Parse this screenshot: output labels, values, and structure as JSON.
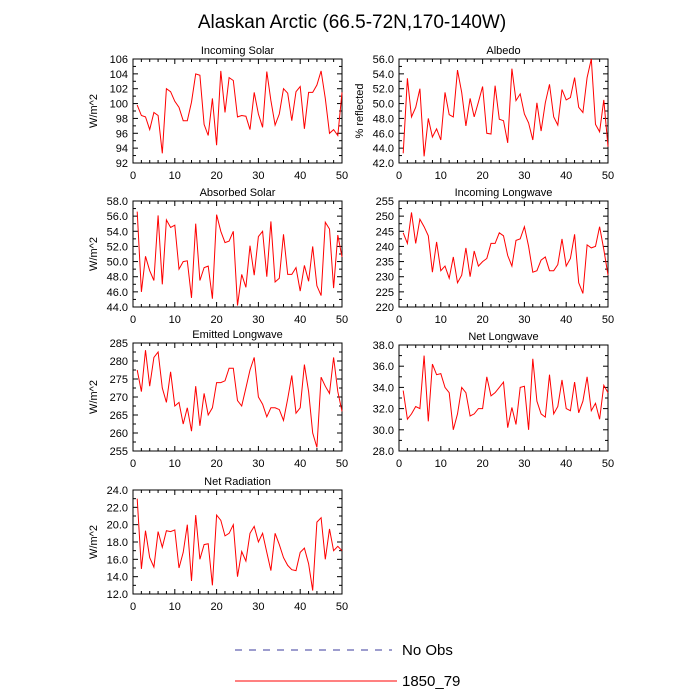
{
  "figure": {
    "title": "Alaskan Arctic (66.5-72N,170-140W)"
  },
  "legend": [
    {
      "label": "No Obs",
      "color": "#3b3b9c",
      "style": "dashed"
    },
    {
      "label": "1850_79",
      "color": "#ff0000",
      "style": "solid"
    }
  ],
  "chart_data": [
    {
      "type": "line",
      "title": "Incoming Solar",
      "ylabel": "W/m^2",
      "xlabel": "",
      "xlim": [
        0,
        50
      ],
      "xticks": [
        0,
        10,
        20,
        30,
        40,
        50
      ],
      "ylim": [
        92,
        106
      ],
      "yticks": [
        92,
        94,
        96,
        98,
        100,
        102,
        104,
        106
      ],
      "ytick_labels": [
        "92",
        "94",
        "96",
        "98",
        "100",
        "102",
        "104",
        "106"
      ],
      "series": [
        {
          "name": "1850_79",
          "color": "#ff0000",
          "x": [
            1,
            2,
            3,
            4,
            5,
            6,
            7,
            8,
            9,
            10,
            11,
            12,
            13,
            14,
            15,
            16,
            17,
            18,
            19,
            20,
            21,
            22,
            23,
            24,
            25,
            26,
            27,
            28,
            29,
            30,
            31,
            32,
            33,
            34,
            35,
            36,
            37,
            38,
            39,
            40,
            41,
            42,
            43,
            44,
            45,
            46,
            47,
            48,
            49,
            50
          ],
          "values": [
            99.8,
            98.4,
            98.2,
            96.5,
            98.8,
            98.4,
            93.3,
            102,
            101.6,
            100.3,
            99.5,
            97.7,
            97.7,
            100.2,
            104,
            103.8,
            97.2,
            95.7,
            100.7,
            94.4,
            104.4,
            98.8,
            103.5,
            103.1,
            98.2,
            98.4,
            98.3,
            96.5,
            101.5,
            98.6,
            96.8,
            104.3,
            100.4,
            97.1,
            98.6,
            102,
            101.4,
            97.7,
            101.6,
            102.3,
            96.6,
            101.5,
            101.5,
            102.5,
            104.4,
            100.7,
            96,
            96.5,
            95.7,
            101.5
          ]
        }
      ]
    },
    {
      "type": "line",
      "title": "Albedo",
      "ylabel": "% reflected",
      "xlabel": "",
      "xlim": [
        0,
        50
      ],
      "xticks": [
        0,
        10,
        20,
        30,
        40,
        50
      ],
      "ylim": [
        42,
        56
      ],
      "yticks": [
        42,
        44,
        46,
        48,
        50,
        52,
        54,
        56
      ],
      "ytick_labels": [
        "42.0",
        "44.0",
        "46.0",
        "48.0",
        "50.0",
        "52.0",
        "54.0",
        "56.0"
      ],
      "series": [
        {
          "name": "1850_79",
          "color": "#ff0000",
          "x": [
            1,
            2,
            3,
            4,
            5,
            6,
            7,
            8,
            9,
            10,
            11,
            12,
            13,
            14,
            15,
            16,
            17,
            18,
            19,
            20,
            21,
            22,
            23,
            24,
            25,
            26,
            27,
            28,
            29,
            30,
            31,
            32,
            33,
            34,
            35,
            36,
            37,
            38,
            39,
            40,
            41,
            42,
            43,
            44,
            45,
            46,
            47,
            48,
            49,
            50
          ],
          "values": [
            43.3,
            53.4,
            48.2,
            49.5,
            52,
            42.9,
            48,
            45.5,
            46.6,
            45.1,
            51.5,
            48.5,
            48.2,
            54.5,
            51.5,
            47,
            50.7,
            48.2,
            50.2,
            52.3,
            46,
            45.9,
            52.4,
            47.9,
            47.7,
            44.7,
            54.7,
            50.4,
            51.3,
            48.6,
            47.4,
            45.1,
            50.1,
            46.3,
            50.1,
            52.6,
            48.2,
            47.1,
            51.9,
            50.5,
            50.8,
            53.5,
            49.5,
            48.8,
            53.5,
            56,
            47.2,
            46.2,
            50.5,
            44.2
          ]
        }
      ]
    },
    {
      "type": "line",
      "title": "Absorbed Solar",
      "ylabel": "W/m^2",
      "xlabel": "",
      "xlim": [
        0,
        50
      ],
      "xticks": [
        0,
        10,
        20,
        30,
        40,
        50
      ],
      "ylim": [
        44,
        58
      ],
      "yticks": [
        44,
        46,
        48,
        50,
        52,
        54,
        56,
        58
      ],
      "ytick_labels": [
        "44.0",
        "46.0",
        "48.0",
        "50.0",
        "52.0",
        "54.0",
        "56.0",
        "58.0"
      ],
      "series": [
        {
          "name": "1850_79",
          "color": "#ff0000",
          "x": [
            1,
            2,
            3,
            4,
            5,
            6,
            7,
            8,
            9,
            10,
            11,
            12,
            13,
            14,
            15,
            16,
            17,
            18,
            19,
            20,
            21,
            22,
            23,
            24,
            25,
            26,
            27,
            28,
            29,
            30,
            31,
            32,
            33,
            34,
            35,
            36,
            37,
            38,
            39,
            40,
            41,
            42,
            43,
            44,
            45,
            46,
            47,
            48,
            49,
            50
          ],
          "values": [
            56.6,
            46,
            50.7,
            48.8,
            47.5,
            56.1,
            47,
            55.5,
            54.5,
            54.8,
            49,
            50,
            50.1,
            45.2,
            55,
            47.5,
            49.2,
            49.4,
            45.1,
            56.2,
            54,
            52.5,
            52.7,
            54,
            44.2,
            48.3,
            46.6,
            52.1,
            48.2,
            53.3,
            54,
            48,
            55.3,
            47.3,
            47.8,
            53.6,
            48.3,
            48.3,
            49.2,
            46.1,
            49.5,
            47.4,
            52,
            46.8,
            45.5,
            55.2,
            54.3,
            46.5,
            53.5,
            50.6
          ]
        }
      ]
    },
    {
      "type": "line",
      "title": "Incoming Longwave",
      "ylabel": "",
      "xlabel": "",
      "xlim": [
        0,
        50
      ],
      "xticks": [
        0,
        10,
        20,
        30,
        40,
        50
      ],
      "ylim": [
        220,
        255
      ],
      "yticks": [
        220,
        225,
        230,
        235,
        240,
        245,
        250,
        255
      ],
      "ytick_labels": [
        "220",
        "225",
        "230",
        "235",
        "240",
        "245",
        "250",
        "255"
      ],
      "series": [
        {
          "name": "1850_79",
          "color": "#ff0000",
          "x": [
            1,
            2,
            3,
            4,
            5,
            6,
            7,
            8,
            9,
            10,
            11,
            12,
            13,
            14,
            15,
            16,
            17,
            18,
            19,
            20,
            21,
            22,
            23,
            24,
            25,
            26,
            27,
            28,
            29,
            30,
            31,
            32,
            33,
            34,
            35,
            36,
            37,
            38,
            39,
            40,
            41,
            42,
            43,
            44,
            45,
            46,
            47,
            48,
            49,
            50
          ],
          "values": [
            244.5,
            241,
            251.2,
            241,
            249,
            246.5,
            243.5,
            231.5,
            241.5,
            232,
            233.5,
            229.5,
            236.5,
            228,
            230.5,
            239.5,
            230,
            238.5,
            233.5,
            235,
            236,
            241,
            241,
            244.5,
            243.5,
            237,
            233.5,
            242,
            242.5,
            246.5,
            240,
            231.5,
            232,
            235.5,
            236.5,
            232,
            232,
            234,
            242.5,
            233.5,
            236,
            244,
            228,
            224.5,
            240.5,
            239.5,
            240,
            246.5,
            239,
            230.5
          ]
        }
      ]
    },
    {
      "type": "line",
      "title": "Emitted Longwave",
      "ylabel": "W/m^2",
      "xlabel": "",
      "xlim": [
        0,
        50
      ],
      "xticks": [
        0,
        10,
        20,
        30,
        40,
        50
      ],
      "ylim": [
        255,
        285
      ],
      "yticks": [
        255,
        260,
        265,
        270,
        275,
        280,
        285
      ],
      "ytick_labels": [
        "255",
        "260",
        "265",
        "270",
        "275",
        "280",
        "285"
      ],
      "series": [
        {
          "name": "1850_79",
          "color": "#ff0000",
          "x": [
            1,
            2,
            3,
            4,
            5,
            6,
            7,
            8,
            9,
            10,
            11,
            12,
            13,
            14,
            15,
            16,
            17,
            18,
            19,
            20,
            21,
            22,
            23,
            24,
            25,
            26,
            27,
            28,
            29,
            30,
            31,
            32,
            33,
            34,
            35,
            36,
            37,
            38,
            39,
            40,
            41,
            42,
            43,
            44,
            45,
            46,
            47,
            48,
            49,
            50
          ],
          "values": [
            277.5,
            271.5,
            283,
            273,
            281,
            282.5,
            272.5,
            268.5,
            277,
            267.5,
            268.5,
            262.5,
            267,
            260.5,
            273,
            262,
            271,
            265,
            267,
            274,
            274,
            274.5,
            278,
            278,
            269,
            267.5,
            272.5,
            277.5,
            281,
            270,
            268,
            264.5,
            267,
            267,
            266.5,
            263.5,
            269.5,
            276,
            265.5,
            267,
            279,
            271.5,
            260,
            256,
            275.5,
            273,
            271,
            281,
            271.5,
            266
          ]
        }
      ]
    },
    {
      "type": "line",
      "title": "Net Longwave",
      "ylabel": "",
      "xlabel": "",
      "xlim": [
        0,
        50
      ],
      "xticks": [
        0,
        10,
        20,
        30,
        40,
        50
      ],
      "ylim": [
        28,
        38
      ],
      "yticks": [
        28,
        30,
        32,
        34,
        36,
        38
      ],
      "ytick_labels": [
        "28.0",
        "30.0",
        "32.0",
        "34.0",
        "36.0",
        "38.0"
      ],
      "series": [
        {
          "name": "1850_79",
          "color": "#ff0000",
          "x": [
            1,
            2,
            3,
            4,
            5,
            6,
            7,
            8,
            9,
            10,
            11,
            12,
            13,
            14,
            15,
            16,
            17,
            18,
            19,
            20,
            21,
            22,
            23,
            24,
            25,
            26,
            27,
            28,
            29,
            30,
            31,
            32,
            33,
            34,
            35,
            36,
            37,
            38,
            39,
            40,
            41,
            42,
            43,
            44,
            45,
            46,
            47,
            48,
            49,
            50
          ],
          "values": [
            33.7,
            31,
            31.5,
            32.2,
            32,
            37,
            30.8,
            36.2,
            35.2,
            35.3,
            34,
            33.5,
            30,
            31.5,
            34,
            33.5,
            31.3,
            31.5,
            32,
            32,
            35,
            33.2,
            33.5,
            34,
            34.5,
            30.2,
            32.1,
            30.5,
            34,
            34.1,
            30,
            36.7,
            32.7,
            31.5,
            31.2,
            35.2,
            31.5,
            32.2,
            34.7,
            32,
            31.8,
            34.5,
            31.6,
            32.7,
            35,
            31.8,
            32.5,
            31,
            34.2,
            33.5
          ]
        }
      ]
    },
    {
      "type": "line",
      "title": "Net Radiation",
      "ylabel": "W/m^2",
      "xlabel": "",
      "xlim": [
        0,
        50
      ],
      "xticks": [
        0,
        10,
        20,
        30,
        40,
        50
      ],
      "ylim": [
        12,
        24
      ],
      "yticks": [
        12,
        14,
        16,
        18,
        20,
        22,
        24
      ],
      "ytick_labels": [
        "12.0",
        "14.0",
        "16.0",
        "18.0",
        "20.0",
        "22.0",
        "24.0"
      ],
      "series": [
        {
          "name": "1850_79",
          "color": "#ff0000",
          "x": [
            1,
            2,
            3,
            4,
            5,
            6,
            7,
            8,
            9,
            10,
            11,
            12,
            13,
            14,
            15,
            16,
            17,
            18,
            19,
            20,
            21,
            22,
            23,
            24,
            25,
            26,
            27,
            28,
            29,
            30,
            31,
            32,
            33,
            34,
            35,
            36,
            37,
            38,
            39,
            40,
            41,
            42,
            43,
            44,
            45,
            46,
            47,
            48,
            49,
            50
          ],
          "values": [
            23,
            14.9,
            19.3,
            16.2,
            15.1,
            19.2,
            17.4,
            19.3,
            19.2,
            19.4,
            15,
            16.8,
            20,
            13.5,
            21.1,
            16,
            17.7,
            17.8,
            13,
            21.1,
            20.5,
            18.7,
            19,
            20,
            14,
            16.9,
            15.8,
            19,
            19.8,
            18,
            19,
            16.8,
            14.7,
            19,
            17.7,
            16.2,
            15.3,
            14.8,
            14.7,
            16.8,
            17.3,
            15.5,
            12.4,
            20.3,
            20.8,
            16,
            19.5,
            17,
            17.5,
            17
          ]
        }
      ]
    }
  ]
}
